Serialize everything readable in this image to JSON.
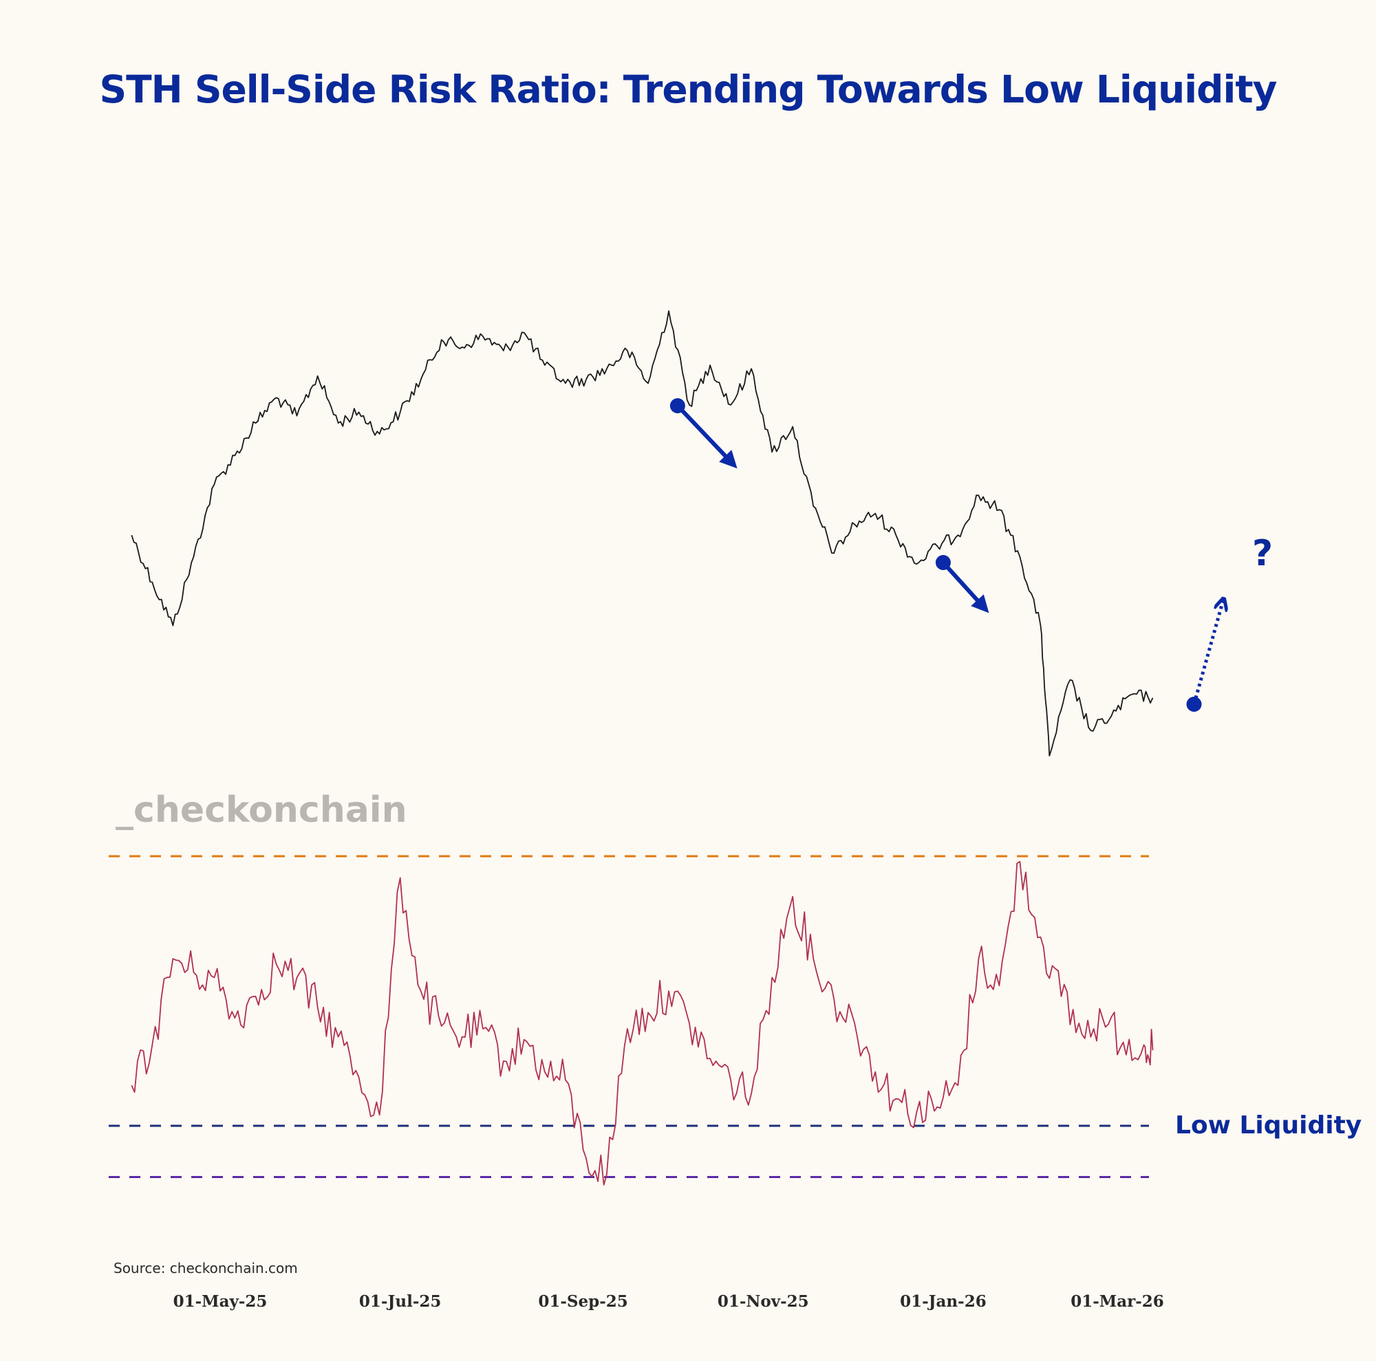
{
  "title": "STH Sell-Side Risk Ratio: Trending Towards Low Liquidity",
  "watermark": "_checkonchain",
  "source": "Source: checkonchain.com",
  "low_liquidity_label": "Low Liquidity",
  "question_mark": "?",
  "colors": {
    "title": "#0a2a9a",
    "price_line": "#1a1a1a",
    "ratio_line": "#b0304f",
    "upper_band": "#e07a10",
    "low_liquidity_band": "#1c2f7a",
    "lower_band": "#5a2aa8",
    "arrow": "#0a2aa8"
  },
  "chart_data": [
    {
      "type": "line",
      "panel": "top",
      "x": [
        "2025-04-01",
        "2025-04-08",
        "2025-04-15",
        "2025-04-22",
        "2025-04-29",
        "2025-05-06",
        "2025-05-13",
        "2025-05-20",
        "2025-05-27",
        "2025-06-03",
        "2025-06-10",
        "2025-06-17",
        "2025-06-24",
        "2025-07-01",
        "2025-07-08",
        "2025-07-15",
        "2025-07-22",
        "2025-07-29",
        "2025-08-05",
        "2025-08-12",
        "2025-08-19",
        "2025-08-26",
        "2025-09-02",
        "2025-09-09",
        "2025-09-16",
        "2025-09-23",
        "2025-09-30",
        "2025-10-07",
        "2025-10-14",
        "2025-10-21",
        "2025-10-28",
        "2025-11-04",
        "2025-11-11",
        "2025-11-18",
        "2025-11-25",
        "2025-12-02",
        "2025-12-09",
        "2025-12-16",
        "2025-12-23",
        "2025-12-30",
        "2026-01-06",
        "2026-01-13",
        "2026-01-20",
        "2026-01-27",
        "2026-02-03",
        "2026-02-06",
        "2026-02-13",
        "2026-02-20",
        "2026-02-27",
        "2026-03-06",
        "2026-03-13"
      ],
      "values": [
        0.3,
        0.17,
        0.05,
        0.24,
        0.44,
        0.52,
        0.61,
        0.68,
        0.63,
        0.74,
        0.61,
        0.64,
        0.58,
        0.64,
        0.73,
        0.84,
        0.82,
        0.85,
        0.81,
        0.86,
        0.77,
        0.72,
        0.73,
        0.76,
        0.81,
        0.72,
        0.92,
        0.66,
        0.77,
        0.66,
        0.76,
        0.53,
        0.6,
        0.38,
        0.25,
        0.33,
        0.36,
        0.3,
        0.22,
        0.27,
        0.3,
        0.41,
        0.37,
        0.24,
        0.05,
        -0.31,
        -0.1,
        -0.24,
        -0.2,
        -0.14,
        -0.15
      ]
    },
    {
      "type": "line",
      "panel": "bottom",
      "x": [
        "2025-04-01",
        "2025-04-08",
        "2025-04-15",
        "2025-04-22",
        "2025-04-29",
        "2025-05-06",
        "2025-05-13",
        "2025-05-20",
        "2025-05-27",
        "2025-06-03",
        "2025-06-10",
        "2025-06-17",
        "2025-06-24",
        "2025-07-01",
        "2025-07-08",
        "2025-07-15",
        "2025-07-22",
        "2025-07-29",
        "2025-08-05",
        "2025-08-12",
        "2025-08-19",
        "2025-08-26",
        "2025-09-02",
        "2025-09-09",
        "2025-09-16",
        "2025-09-23",
        "2025-09-30",
        "2025-10-07",
        "2025-10-14",
        "2025-10-21",
        "2025-10-28",
        "2025-11-04",
        "2025-11-11",
        "2025-11-18",
        "2025-11-25",
        "2025-12-02",
        "2025-12-09",
        "2025-12-16",
        "2025-12-23",
        "2025-12-30",
        "2026-01-06",
        "2026-01-13",
        "2026-01-20",
        "2026-01-27",
        "2026-02-03",
        "2026-02-10",
        "2026-02-17",
        "2026-02-24",
        "2026-03-03",
        "2026-03-10",
        "2026-03-13"
      ],
      "values": [
        0.15,
        0.3,
        0.62,
        0.57,
        0.55,
        0.4,
        0.48,
        0.6,
        0.55,
        0.44,
        0.33,
        0.18,
        0.04,
        0.92,
        0.5,
        0.37,
        0.33,
        0.36,
        0.24,
        0.32,
        0.2,
        0.17,
        -0.12,
        -0.18,
        0.36,
        0.42,
        0.5,
        0.38,
        0.25,
        0.17,
        0.12,
        0.55,
        0.85,
        0.62,
        0.47,
        0.38,
        0.2,
        0.1,
        0.05,
        0.07,
        0.15,
        0.62,
        0.52,
        0.98,
        0.7,
        0.48,
        0.34,
        0.4,
        0.31,
        0.3,
        0.28
      ],
      "reference_lines": [
        {
          "value": 1.0
        },
        {
          "value": 0.0,
          "label": "Low Liquidity"
        },
        {
          "value": -0.19
        }
      ]
    }
  ],
  "x_axis": {
    "ticks": [
      {
        "date": "2025-05-01",
        "label": "01-May-25"
      },
      {
        "date": "2025-07-01",
        "label": "01-Jul-25"
      },
      {
        "date": "2025-09-01",
        "label": "01-Sep-25"
      },
      {
        "date": "2025-11-01",
        "label": "01-Nov-25"
      },
      {
        "date": "2026-01-01",
        "label": "01-Jan-26"
      },
      {
        "date": "2026-03-01",
        "label": "01-Mar-26"
      }
    ]
  },
  "annotations": [
    {
      "type": "down-arrow",
      "date": "2025-10-03",
      "panel": "top"
    },
    {
      "type": "down-arrow",
      "date": "2026-01-01",
      "panel": "top"
    },
    {
      "type": "dotted-up-arrow",
      "date": "2026-03-27",
      "panel": "top"
    }
  ]
}
